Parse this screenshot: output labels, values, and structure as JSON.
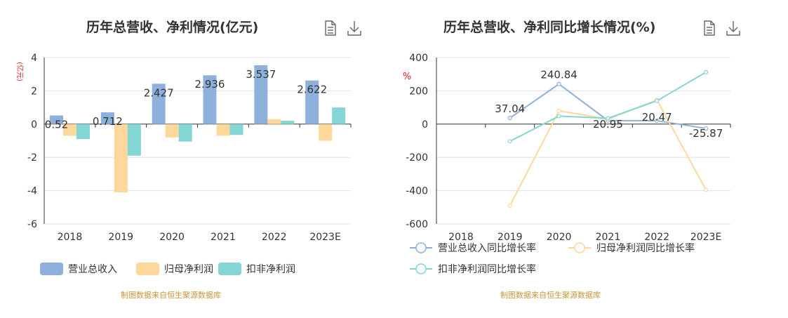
{
  "left": {
    "title": "历年总营收、净利情况(亿元)",
    "unit_label": "(亿元)",
    "source": "制图数据来自恒生聚源数据库",
    "icons": [
      "data-view-icon",
      "download-icon"
    ]
  },
  "right": {
    "title": "历年总营收、净利同比增长情况(%)",
    "unit_label": "%",
    "source": "制图数据来自恒生聚源数据库",
    "icons": [
      "data-view-icon",
      "download-icon"
    ]
  },
  "chart_data": [
    {
      "type": "bar",
      "categories": [
        "2018",
        "2019",
        "2020",
        "2021",
        "2022",
        "2023E"
      ],
      "ylim": [
        -6,
        4
      ],
      "yticks": [
        4,
        2,
        0,
        -2,
        -4,
        -6
      ],
      "ylabel": "(亿元)",
      "grid": true,
      "legend": "bottom-left",
      "series": [
        {
          "name": "营业总收入",
          "color": "#8eb0dc",
          "values": [
            0.52,
            0.712,
            2.427,
            2.936,
            3.537,
            2.622
          ],
          "labels": [
            "0.52",
            "0.712",
            "2.427",
            "2.936",
            "3.537",
            "2.622"
          ]
        },
        {
          "name": "归母净利润",
          "color": "#fdd89a",
          "values": [
            -0.7,
            -4.1,
            -0.8,
            -0.7,
            0.3,
            -1.0
          ]
        },
        {
          "name": "扣非净利润",
          "color": "#84d5d6",
          "values": [
            -0.9,
            -1.9,
            -1.05,
            -0.65,
            0.2,
            1.0
          ]
        }
      ]
    },
    {
      "type": "line",
      "categories": [
        "2018",
        "2019",
        "2020",
        "2021",
        "2022",
        "2023E"
      ],
      "ylim": [
        -600,
        400
      ],
      "yticks": [
        400,
        200,
        0,
        -200,
        -400,
        -600
      ],
      "ylabel": "%",
      "grid": true,
      "legend": "bottom-left",
      "series": [
        {
          "name": "营业总收入同比增长率",
          "color": "#8eb0dc",
          "values": [
            null,
            37.04,
            240.84,
            20.95,
            20.47,
            -25.87
          ],
          "labels": [
            null,
            "37.04",
            "240.84",
            "20.95",
            "20.47",
            "-25.87"
          ]
        },
        {
          "name": "归母净利润同比增长率",
          "color": "#fdd89a",
          "values": [
            null,
            -490,
            80,
            30,
            145,
            -395
          ]
        },
        {
          "name": "扣非净利润同比增长率",
          "color": "#84d5d6",
          "values": [
            null,
            -103,
            48,
            35,
            140,
            312
          ]
        }
      ]
    }
  ]
}
